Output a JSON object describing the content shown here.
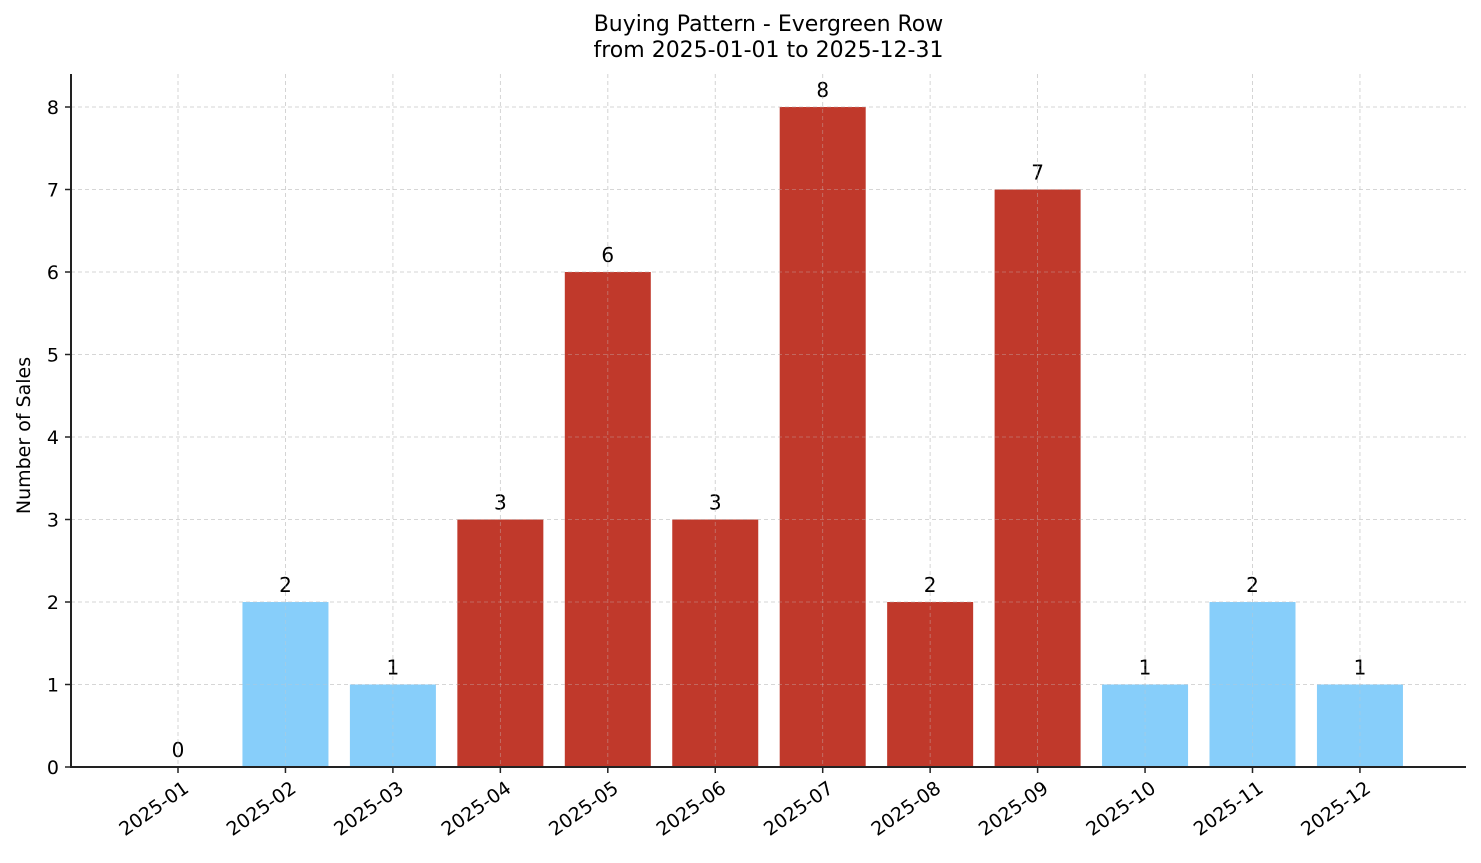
{
  "chart_data": {
    "type": "bar",
    "title": "Buying Pattern - Evergreen Row",
    "subtitle": "from 2025-01-01 to 2025-12-31",
    "xlabel": "",
    "ylabel": "Number of Sales",
    "categories": [
      "2025-01",
      "2025-02",
      "2025-03",
      "2025-04",
      "2025-05",
      "2025-06",
      "2025-07",
      "2025-08",
      "2025-09",
      "2025-10",
      "2025-11",
      "2025-12"
    ],
    "values": [
      0,
      2,
      1,
      3,
      6,
      3,
      8,
      2,
      7,
      1,
      2,
      1
    ],
    "bar_colors": [
      "#87CEFA",
      "#87CEFA",
      "#87CEFA",
      "#C0392B",
      "#C0392B",
      "#C0392B",
      "#C0392B",
      "#C0392B",
      "#C0392B",
      "#87CEFA",
      "#87CEFA",
      "#87CEFA"
    ],
    "data_labels": [
      "0",
      "2",
      "1",
      "3",
      "6",
      "3",
      "8",
      "2",
      "7",
      "1",
      "2",
      "1"
    ],
    "yticks": [
      0,
      1,
      2,
      3,
      4,
      5,
      6,
      7,
      8
    ],
    "ylim": [
      0,
      8.4
    ],
    "grid": true,
    "legend": null
  },
  "colors": {
    "high": "#C0392B",
    "low": "#87CEFA",
    "grid": "#d3d3d3",
    "axis": "#222222"
  }
}
